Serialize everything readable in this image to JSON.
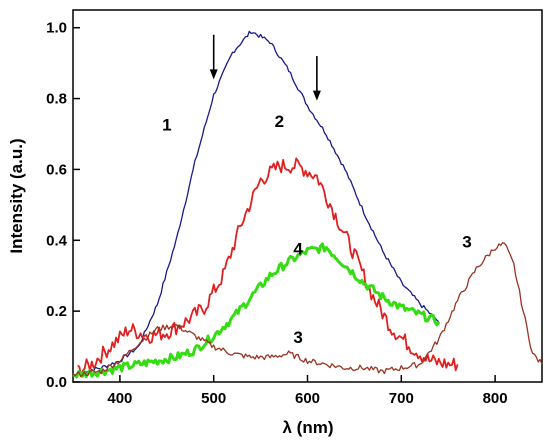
{
  "chart_data": {
    "type": "line",
    "title": "",
    "xlabel": "λ (nm)",
    "ylabel": "Intensity (a.u.)",
    "xlim": [
      350,
      850
    ],
    "ylim": [
      0.0,
      1.05
    ],
    "xticks": [
      400,
      500,
      600,
      700,
      800
    ],
    "xtick_labels": [
      "400",
      "500",
      "600",
      "700",
      "800"
    ],
    "yticks": [
      0.0,
      0.2,
      0.4,
      0.6,
      0.8,
      1.0
    ],
    "ytick_labels": [
      "0.0",
      "0.2",
      "0.4",
      "0.6",
      "0.8",
      "1.0"
    ],
    "grid": false,
    "legend": "none",
    "series": [
      {
        "name": "1",
        "color": "#1a1a8c",
        "x": [
          360,
          380,
          400,
          420,
          440,
          460,
          480,
          500,
          520,
          540,
          560,
          580,
          600,
          620,
          640,
          660,
          680,
          700,
          720,
          740
        ],
        "y": [
          0.03,
          0.04,
          0.06,
          0.1,
          0.22,
          0.4,
          0.62,
          0.81,
          0.93,
          0.99,
          0.96,
          0.88,
          0.78,
          0.7,
          0.6,
          0.48,
          0.37,
          0.28,
          0.22,
          0.17
        ]
      },
      {
        "name": "2",
        "color": "#e02020",
        "x": [
          355,
          370,
          390,
          410,
          430,
          450,
          470,
          490,
          510,
          530,
          550,
          570,
          590,
          610,
          630,
          650,
          670,
          690,
          710,
          730,
          750,
          760
        ],
        "y": [
          0.03,
          0.05,
          0.1,
          0.15,
          0.13,
          0.14,
          0.17,
          0.21,
          0.3,
          0.45,
          0.57,
          0.61,
          0.61,
          0.58,
          0.47,
          0.36,
          0.24,
          0.15,
          0.1,
          0.06,
          0.05,
          0.05
        ]
      },
      {
        "name": "4",
        "color": "#33dd11",
        "x": [
          350,
          380,
          400,
          420,
          440,
          460,
          480,
          500,
          520,
          540,
          560,
          580,
          600,
          620,
          640,
          660,
          680,
          700,
          720,
          740
        ],
        "y": [
          0.02,
          0.03,
          0.04,
          0.05,
          0.06,
          0.07,
          0.09,
          0.13,
          0.18,
          0.24,
          0.3,
          0.34,
          0.37,
          0.38,
          0.33,
          0.28,
          0.24,
          0.21,
          0.19,
          0.17
        ]
      },
      {
        "name": "3",
        "color": "#993322",
        "x": [
          350,
          380,
          400,
          420,
          440,
          460,
          480,
          500,
          520,
          540,
          560,
          580,
          600,
          620,
          640,
          660,
          680,
          700,
          720,
          740,
          760,
          780,
          800,
          810,
          820,
          830,
          840,
          850
        ],
        "y": [
          0.02,
          0.03,
          0.06,
          0.11,
          0.15,
          0.16,
          0.13,
          0.1,
          0.08,
          0.07,
          0.07,
          0.08,
          0.06,
          0.05,
          0.04,
          0.04,
          0.03,
          0.04,
          0.05,
          0.12,
          0.23,
          0.32,
          0.38,
          0.39,
          0.33,
          0.2,
          0.08,
          0.05
        ]
      }
    ],
    "curve_labels": [
      {
        "text": "1",
        "x": 450,
        "y": 0.71
      },
      {
        "text": "2",
        "x": 570,
        "y": 0.72
      },
      {
        "text": "4",
        "x": 590,
        "y": 0.36
      },
      {
        "text": "3",
        "x": 590,
        "y": 0.11
      },
      {
        "text": "3",
        "x": 770,
        "y": 0.38
      }
    ],
    "arrows": [
      {
        "x": 500,
        "y_from": 0.98,
        "y_to": 0.86
      },
      {
        "x": 610,
        "y_from": 0.92,
        "y_to": 0.8
      }
    ]
  }
}
